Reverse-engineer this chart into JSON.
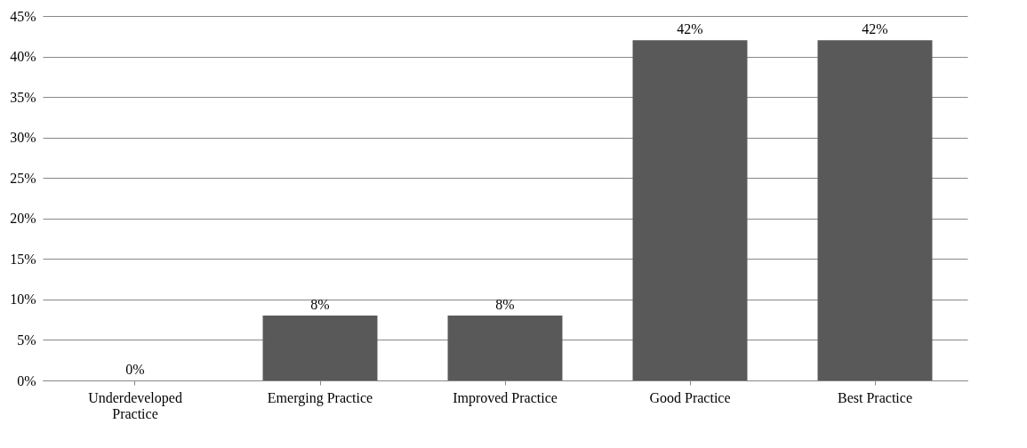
{
  "chart_data": {
    "type": "bar",
    "categories": [
      "Underdeveloped Practice",
      "Emerging Practice",
      "Improved Practice",
      "Good Practice",
      "Best Practice"
    ],
    "values": [
      0,
      8,
      8,
      42,
      42
    ],
    "value_labels": [
      "0%",
      "8%",
      "8%",
      "42%",
      "42%"
    ],
    "color": "#595959",
    "ylim": [
      0,
      45
    ],
    "yticks": [
      {
        "value": 0,
        "label": "0%"
      },
      {
        "value": 5,
        "label": "5%"
      },
      {
        "value": 10,
        "label": "10%"
      },
      {
        "value": 15,
        "label": "15%"
      },
      {
        "value": 20,
        "label": "20%"
      },
      {
        "value": 25,
        "label": "25%"
      },
      {
        "value": 30,
        "label": "30%"
      },
      {
        "value": 35,
        "label": "35%"
      },
      {
        "value": 40,
        "label": "40%"
      },
      {
        "value": 45,
        "label": "45%"
      }
    ],
    "grid": "y"
  }
}
